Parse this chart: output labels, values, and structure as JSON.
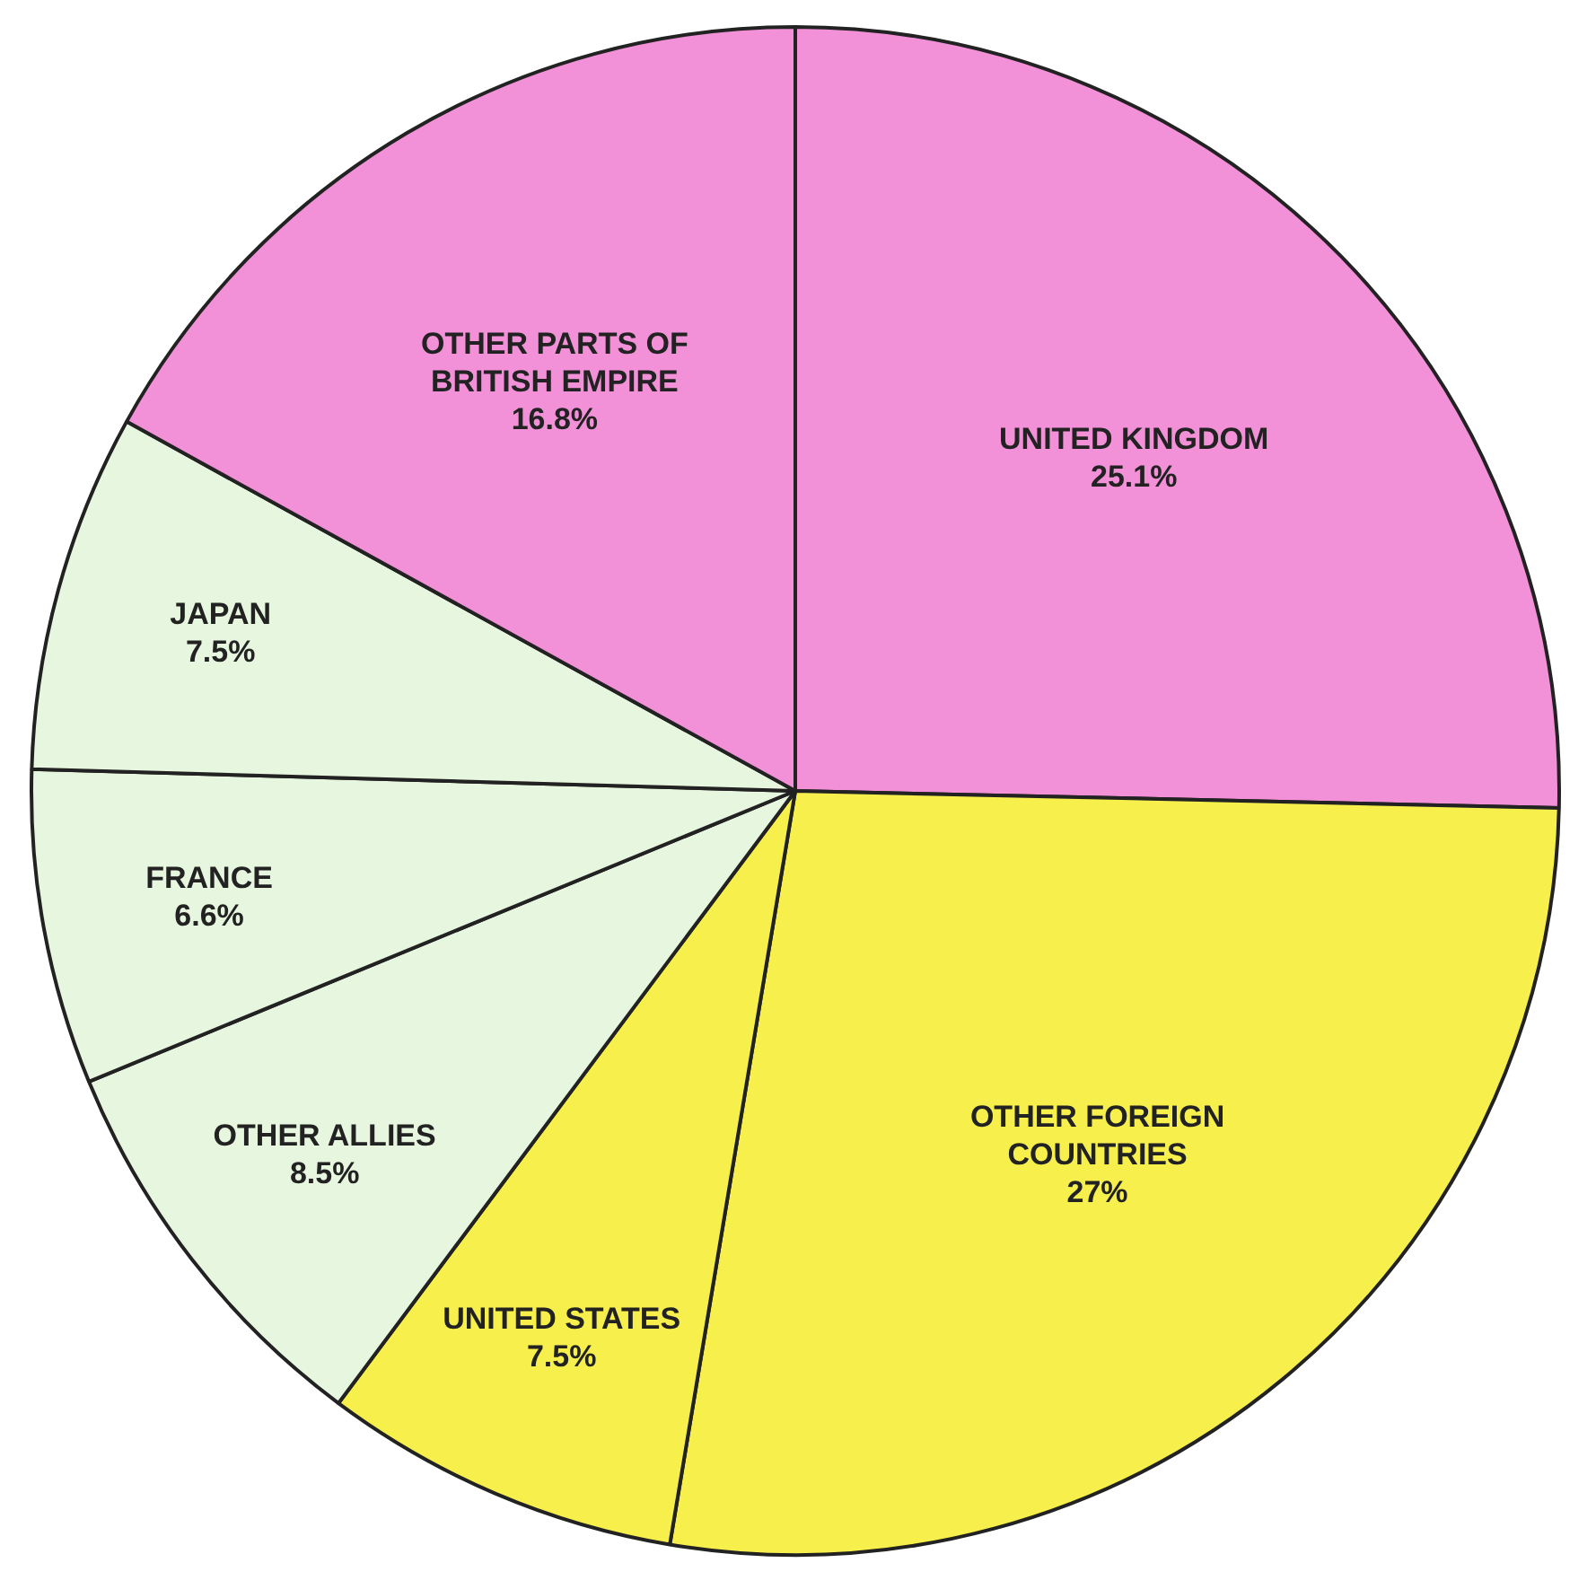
{
  "chart_data": {
    "type": "pie",
    "categories": [
      "UNITED KINGDOM",
      "OTHER FOREIGN COUNTRIES",
      "UNITED STATES",
      "OTHER ALLIES",
      "FRANCE",
      "JAPAN",
      "OTHER PARTS OF BRITISH EMPIRE"
    ],
    "values": [
      25.1,
      27,
      7.5,
      8.5,
      6.6,
      7.5,
      16.8
    ],
    "value_labels": [
      "25.1%",
      "27%",
      "7.5%",
      "8.5%",
      "6.6%",
      "7.5%",
      "16.8%"
    ],
    "colors": [
      "#f291d8",
      "#f6ef4c",
      "#f6ef4c",
      "#e6f6df",
      "#e6f6df",
      "#e6f6df",
      "#f291d8"
    ],
    "legend": false
  }
}
